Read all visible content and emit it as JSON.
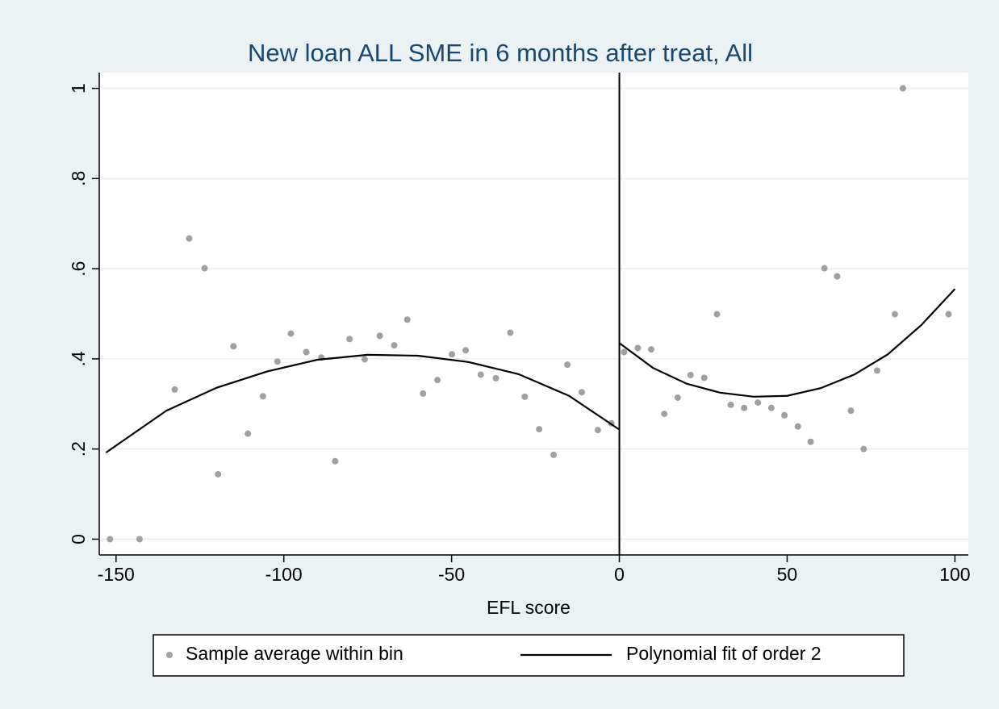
{
  "chart_data": {
    "type": "scatter",
    "title": "New loan ALL SME in 6 months after treat, All",
    "xlabel": "EFL score",
    "xlim": [
      -155,
      104
    ],
    "ylim": [
      -0.035,
      1.035
    ],
    "xticks": [
      -150,
      -100,
      -50,
      0,
      50,
      100
    ],
    "yticks": [
      0,
      {
        "value": 0.2,
        "label": ".2"
      },
      {
        "value": 0.4,
        "label": ".4"
      },
      {
        "value": 0.6,
        "label": ".6"
      },
      {
        "value": 0.8,
        "label": ".8"
      },
      1
    ],
    "grid": true,
    "xline": 0,
    "legend": "bottom",
    "series": [
      {
        "name": "Sample average within bin",
        "type": "scatter",
        "color": "#a0a0a0",
        "x": [
          -151.8,
          -143,
          -132.5,
          -128.2,
          -123.6,
          -119.6,
          -115,
          -110.7,
          -106.2,
          -101.9,
          -97.9,
          -93.3,
          -88.8,
          -84.7,
          -80.4,
          -75.9,
          -71.4,
          -67.1,
          -63.2,
          -58.5,
          -54.2,
          -49.9,
          -45.8,
          -41.3,
          -36.8,
          -32.5,
          -28.2,
          -23.9,
          -19.6,
          -15.5,
          -11.2,
          -6.4,
          -2.4,
          1.4,
          5.5,
          9.5,
          13.4,
          17.4,
          21.2,
          25.3,
          29.1,
          33.2,
          37.2,
          41.3,
          45.3,
          49.2,
          53.2,
          57,
          61.1,
          64.9,
          69,
          72.8,
          76.8,
          82.1,
          84.5,
          98.1
        ],
        "values": [
          0,
          0,
          0.332,
          0.667,
          0.601,
          0.144,
          0.428,
          0.234,
          0.317,
          0.394,
          0.456,
          0.415,
          0.403,
          0.173,
          0.444,
          0.399,
          0.451,
          0.43,
          0.487,
          0.323,
          0.353,
          0.41,
          0.419,
          0.365,
          0.357,
          0.458,
          0.316,
          0.244,
          0.187,
          0.387,
          0.326,
          0.242,
          0.257,
          0.415,
          0.424,
          0.421,
          0.278,
          0.314,
          0.364,
          0.358,
          0.499,
          0.298,
          0.291,
          0.303,
          0.291,
          0.275,
          0.25,
          0.216,
          0.601,
          0.583,
          0.285,
          0.2,
          0.374,
          0.499,
          1,
          0.499
        ]
      },
      {
        "name": "Polynomial fit of order 2",
        "type": "line",
        "color": "#000000",
        "x": [
          -153,
          -135,
          -120,
          -105,
          -90,
          -75,
          -60,
          -45,
          -30,
          -15,
          0,
          0,
          0,
          10,
          20,
          30,
          40,
          50,
          60,
          70,
          80,
          90,
          100
        ],
        "values": [
          0.192,
          0.285,
          0.336,
          0.372,
          0.398,
          0.409,
          0.407,
          0.393,
          0.366,
          0.318,
          0.243,
          null,
          0.435,
          0.38,
          0.345,
          0.325,
          0.316,
          0.318,
          0.335,
          0.365,
          0.41,
          0.475,
          0.555
        ]
      }
    ]
  }
}
